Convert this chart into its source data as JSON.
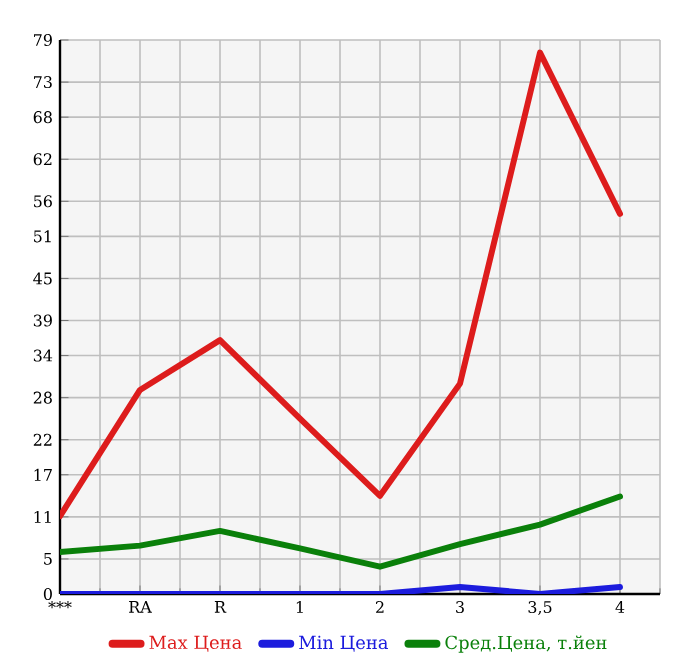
{
  "chart_data": {
    "type": "line",
    "categories": [
      "***",
      "RA",
      "R",
      "1",
      "2",
      "3",
      "3,5",
      "4"
    ],
    "series": [
      {
        "name": "Max Цена",
        "color": "#dd1c1c",
        "values": [
          11.1,
          29.1,
          36.2,
          25,
          14.0,
          30.0,
          77.2,
          54.2
        ]
      },
      {
        "name": "Min Цена",
        "color": "#1c1cdd",
        "values": [
          0,
          0,
          0,
          0,
          0,
          1.0,
          0,
          1.0
        ]
      },
      {
        "name": "Сред.Цена, т.йен",
        "color": "#0a800a",
        "values": [
          6.0,
          6.9,
          9.0,
          6.5,
          3.9,
          7.1,
          9.9,
          13.9
        ]
      }
    ],
    "ylim": [
      0,
      79
    ],
    "yticks": [
      0,
      5,
      11,
      17,
      22,
      28,
      34,
      39,
      45,
      51,
      56,
      62,
      68,
      73,
      79
    ],
    "grid": true,
    "legend": "bottom",
    "marker": "none",
    "line_style": "solid"
  }
}
